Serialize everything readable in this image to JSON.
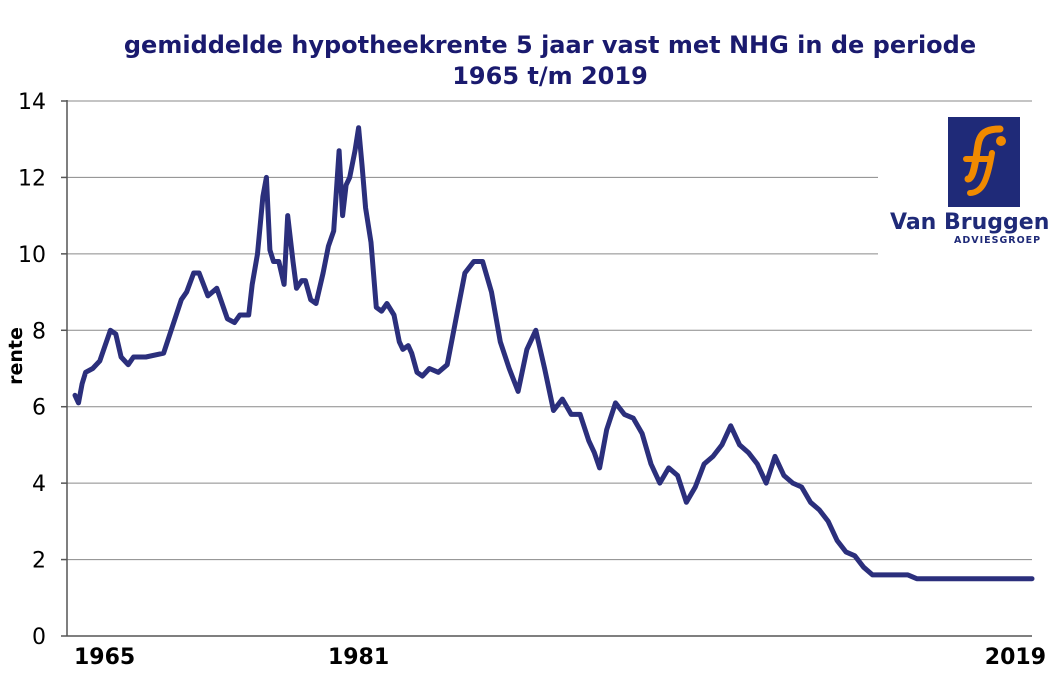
{
  "chart_data": {
    "type": "line",
    "title_line1": "gemiddelde hypotheekrente 5 jaar vast met NHG in de periode",
    "title_line2": "1965 t/m 2019",
    "xlabel": "",
    "ylabel": "rente",
    "ylim": [
      0,
      14
    ],
    "yticks": [
      "0",
      "2",
      "4",
      "6",
      "8",
      "10",
      "12",
      "14"
    ],
    "xlim": [
      1965,
      2019
    ],
    "xticks": [
      {
        "label": "1965",
        "value": 1965
      },
      {
        "label": "1981",
        "value": 1981
      },
      {
        "label": "2019",
        "value": 2019
      }
    ],
    "grid": true,
    "line_color": "#2b2f7c",
    "series": [
      {
        "x": [
          1965.0,
          1965.2,
          1965.4,
          1965.6,
          1966.0,
          1966.4,
          1966.7,
          1967.0,
          1967.3,
          1967.6,
          1968.0,
          1968.3,
          1968.6,
          1969.0,
          1970.0,
          1971.0,
          1971.3,
          1971.7,
          1972.0,
          1972.5,
          1973.0,
          1973.6,
          1974.0,
          1974.3,
          1974.8,
          1975.0,
          1975.3,
          1975.6,
          1975.8,
          1976.0,
          1976.2,
          1976.5,
          1976.8,
          1977.0,
          1977.3,
          1977.5,
          1977.8,
          1978.0,
          1978.3,
          1978.6,
          1979.0,
          1979.3,
          1979.6,
          1979.9,
          1980.1,
          1980.3,
          1980.5,
          1980.8,
          1981.0,
          1981.2,
          1981.4,
          1981.7,
          1982.0,
          1982.3,
          1982.6,
          1983.0,
          1983.3,
          1983.5,
          1983.8,
          1984.0,
          1984.3,
          1984.6,
          1985.0,
          1985.5,
          1986.0,
          1986.5,
          1987.0,
          1987.5,
          1988.0,
          1988.5,
          1989.0,
          1989.5,
          1990.0,
          1990.5,
          1991.0,
          1991.5,
          1992.0,
          1992.5,
          1993.0,
          1993.5,
          1994.0,
          1994.3,
          1994.6,
          1995.0,
          1995.5,
          1996.0,
          1996.5,
          1997.0,
          1997.5,
          1998.0,
          1998.5,
          1999.0,
          1999.5,
          2000.0,
          2000.5,
          2001.0,
          2001.5,
          2002.0,
          2002.5,
          2003.0,
          2003.5,
          2004.0,
          2004.5,
          2005.0,
          2005.5,
          2006.0,
          2006.5,
          2007.0,
          2007.5,
          2008.0,
          2008.5,
          2009.0,
          2009.5,
          2010.0,
          2010.5,
          2011.0,
          2011.5,
          2012.0,
          2012.5,
          2013.0,
          2013.5,
          2014.0,
          2014.5,
          2015.0,
          2015.5,
          2016.0,
          2016.5,
          2017.0,
          2017.5,
          2018.0,
          2018.5,
          2019.0
        ],
        "y": [
          6.3,
          6.1,
          6.6,
          6.9,
          7.0,
          7.2,
          7.6,
          8.0,
          7.9,
          7.3,
          7.1,
          7.3,
          7.3,
          7.3,
          7.4,
          8.8,
          9.0,
          9.5,
          9.5,
          8.9,
          9.1,
          8.3,
          8.2,
          8.4,
          8.4,
          9.2,
          10.0,
          11.5,
          12.0,
          10.1,
          9.8,
          9.8,
          9.2,
          11.0,
          9.8,
          9.1,
          9.3,
          9.3,
          8.8,
          8.7,
          9.5,
          10.2,
          10.6,
          12.7,
          11.0,
          11.8,
          12.0,
          12.7,
          13.3,
          12.3,
          11.2,
          10.3,
          8.6,
          8.5,
          8.7,
          8.4,
          7.7,
          7.5,
          7.6,
          7.4,
          6.9,
          6.8,
          7.0,
          6.9,
          7.1,
          8.3,
          9.5,
          9.8,
          9.8,
          9.0,
          7.7,
          7.0,
          6.4,
          7.5,
          8.0,
          7.0,
          5.9,
          6.2,
          5.8,
          5.8,
          5.1,
          4.8,
          4.4,
          5.4,
          6.1,
          5.8,
          5.7,
          5.3,
          4.5,
          4.0,
          4.4,
          4.2,
          3.5,
          3.9,
          4.5,
          4.7,
          5.0,
          5.5,
          5.0,
          4.8,
          4.5,
          4.0,
          4.7,
          4.2,
          4.0,
          3.9,
          3.5,
          3.3,
          3.0,
          2.5,
          2.2,
          2.1,
          1.8,
          1.6,
          1.6,
          1.6,
          1.6,
          1.6,
          1.5,
          1.5,
          1.5,
          1.5,
          1.5,
          1.5,
          1.5,
          1.5,
          1.5,
          1.5,
          1.5,
          1.5,
          1.5,
          1.5
        ]
      }
    ]
  },
  "logo": {
    "name": "Van Bruggen",
    "sub": "ADVIESGROEP",
    "box_color": "#1f2a78",
    "accent_color": "#f08a00"
  }
}
